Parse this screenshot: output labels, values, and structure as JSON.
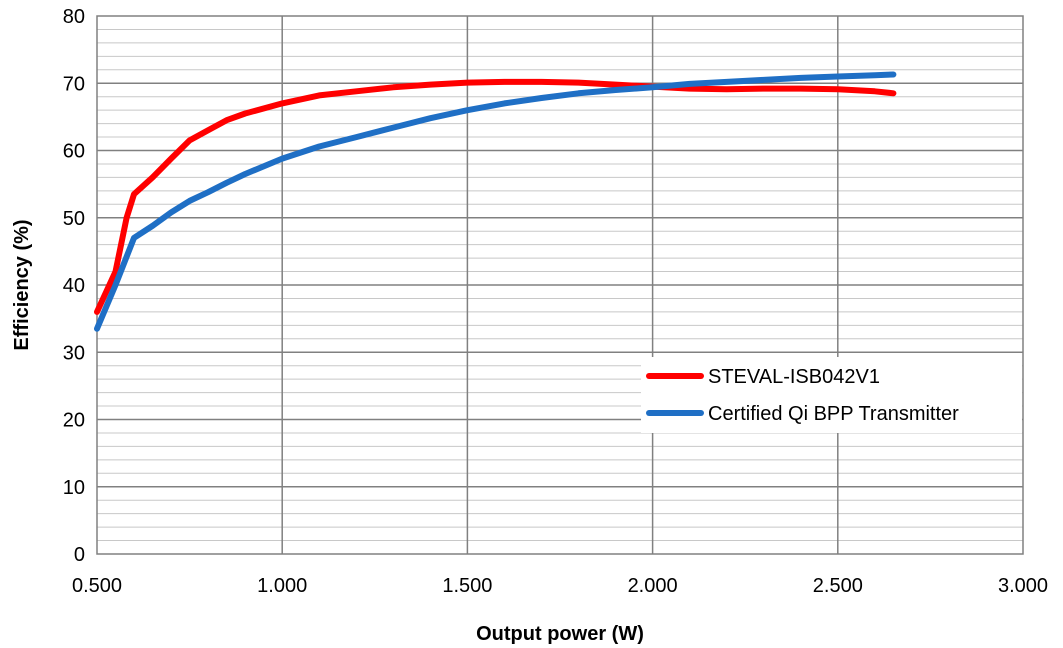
{
  "chart_data": {
    "type": "line",
    "title": "",
    "xlabel": "Output power (W)",
    "ylabel": "Efficiency (%)",
    "xlim": [
      0.5,
      3.0
    ],
    "ylim": [
      0,
      80
    ],
    "x_ticks": [
      "0.500",
      "1.000",
      "1.500",
      "2.000",
      "2.500",
      "3.000"
    ],
    "y_ticks": [
      "0",
      "10",
      "20",
      "30",
      "40",
      "50",
      "60",
      "70",
      "80"
    ],
    "grid": true,
    "legend_position": "right-middle",
    "series": [
      {
        "name": "STEVAL-ISB042V1",
        "color": "#ff0000",
        "x": [
          0.5,
          0.55,
          0.58,
          0.6,
          0.65,
          0.7,
          0.75,
          0.8,
          0.85,
          0.9,
          1.0,
          1.1,
          1.2,
          1.3,
          1.4,
          1.5,
          1.6,
          1.7,
          1.8,
          1.9,
          2.0,
          2.1,
          2.2,
          2.3,
          2.4,
          2.5,
          2.6,
          2.65
        ],
        "y": [
          36.0,
          42.0,
          50.0,
          53.5,
          56.0,
          58.8,
          61.5,
          63.0,
          64.5,
          65.5,
          67.0,
          68.2,
          68.8,
          69.4,
          69.8,
          70.1,
          70.2,
          70.2,
          70.1,
          69.8,
          69.5,
          69.2,
          69.1,
          69.2,
          69.2,
          69.1,
          68.8,
          68.5
        ]
      },
      {
        "name": "Certified Qi BPP Transmitter",
        "color": "#1f6fc5",
        "x": [
          0.5,
          0.55,
          0.6,
          0.65,
          0.7,
          0.75,
          0.8,
          0.85,
          0.9,
          1.0,
          1.1,
          1.2,
          1.3,
          1.4,
          1.5,
          1.6,
          1.7,
          1.8,
          1.9,
          2.0,
          2.1,
          2.2,
          2.3,
          2.4,
          2.5,
          2.6,
          2.65
        ],
        "y": [
          33.5,
          40.0,
          47.0,
          48.8,
          50.8,
          52.5,
          53.8,
          55.2,
          56.5,
          58.8,
          60.6,
          62.0,
          63.4,
          64.8,
          66.0,
          67.0,
          67.8,
          68.5,
          69.0,
          69.4,
          69.9,
          70.2,
          70.5,
          70.8,
          71.0,
          71.2,
          71.3
        ]
      }
    ]
  }
}
